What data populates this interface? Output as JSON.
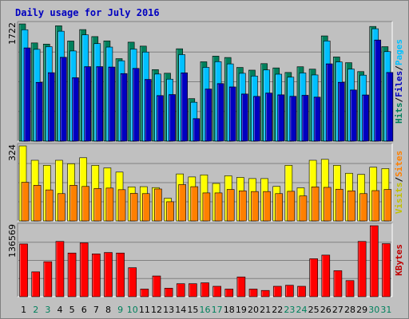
{
  "chart_data": {
    "type": "bar",
    "title": "Daily usage for July 2016",
    "categories": [
      "1",
      "2",
      "3",
      "4",
      "5",
      "6",
      "7",
      "8",
      "9",
      "10",
      "11",
      "12",
      "13",
      "14",
      "15",
      "16",
      "17",
      "18",
      "19",
      "20",
      "21",
      "22",
      "23",
      "24",
      "25",
      "26",
      "27",
      "28",
      "29",
      "30",
      "31"
    ],
    "weekend_days": [
      "2",
      "3",
      "9",
      "10",
      "16",
      "17",
      "23",
      "24",
      "30",
      "31"
    ],
    "panels": [
      {
        "id": "top",
        "ymax_label": "1722",
        "ymax": 1722,
        "axis_label": [
          "Hits",
          "/",
          "Files",
          "/",
          "Pages"
        ],
        "axis_label_colors": [
          "#00805c",
          "#000000",
          "#0000c0",
          "#000000",
          "#00c0ff"
        ],
        "series": [
          {
            "name": "Hits",
            "color": "#00805c",
            "values": [
              1722,
              1443,
              1426,
              1695,
              1471,
              1639,
              1536,
              1473,
              1212,
              1454,
              1396,
              1051,
              998,
              1357,
              625,
              1166,
              1249,
              1229,
              1083,
              1043,
              1139,
              1076,
              1009,
              1093,
              1058,
              1546,
              1237,
              1153,
              1022,
              1685,
              1388
            ]
          },
          {
            "name": "Files",
            "color": "#00c0ff",
            "values": [
              1637,
              1349,
              1388,
              1615,
              1325,
              1562,
              1433,
              1382,
              1181,
              1353,
              1309,
              986,
              911,
              1271,
              572,
              1084,
              1168,
              1135,
              997,
              957,
              1046,
              984,
              940,
              1002,
              973,
              1472,
              1164,
              1059,
              970,
              1651,
              1315
            ]
          },
          {
            "name": "Pages",
            "color": "#0000c0",
            "values": [
              1370,
              864,
              1006,
              1232,
              932,
              1095,
              1095,
              1089,
              993,
              1069,
              907,
              670,
              685,
              1004,
              331,
              766,
              846,
              797,
              693,
              658,
              707,
              681,
              659,
              674,
              647,
              1136,
              865,
              752,
              679,
              1486,
              1009
            ]
          }
        ]
      },
      {
        "id": "middle",
        "ymax_label": "324",
        "ymax": 324,
        "axis_label": [
          "Visits",
          "/",
          "Sites"
        ],
        "axis_label_colors": [
          "#c0c000",
          "#000000",
          "#ff8000"
        ],
        "series": [
          {
            "name": "Visits",
            "color": "#ffff00",
            "values": [
              324,
              262,
              240,
              262,
              247,
              273,
              240,
              229,
              211,
              147,
              148,
              144,
              98,
              203,
              190,
              199,
              162,
              195,
              188,
              183,
              183,
              149,
              240,
              143,
              262,
              266,
              240,
              206,
              201,
              232,
              226
            ]
          },
          {
            "name": "Sites",
            "color": "#ff8000",
            "values": [
              167,
              154,
              134,
              118,
              154,
              149,
              140,
              142,
              135,
              119,
              118,
              138,
              83,
              157,
              148,
              121,
              121,
              136,
              130,
              127,
              127,
              118,
              128,
              108,
              147,
              145,
              137,
              130,
              118,
              131,
              136
            ]
          }
        ]
      },
      {
        "id": "bottom",
        "ymax_label": "136569",
        "ymax": 136569,
        "axis_label": [
          "KBytes"
        ],
        "axis_label_colors": [
          "#c00000"
        ],
        "series": [
          {
            "name": "KBytes",
            "color": "#ff0000",
            "values": [
              101418,
              47796,
              67316,
              106291,
              84003,
              103596,
              82302,
              85006,
              84003,
              55762,
              14624,
              39838,
              16299,
              24990,
              24990,
              26715,
              20000,
              14624,
              38000,
              14624,
              12000,
              20000,
              22000,
              20000,
              73000,
              80000,
              50000,
              31000,
              106291,
              136569,
              102000
            ]
          }
        ]
      }
    ]
  }
}
